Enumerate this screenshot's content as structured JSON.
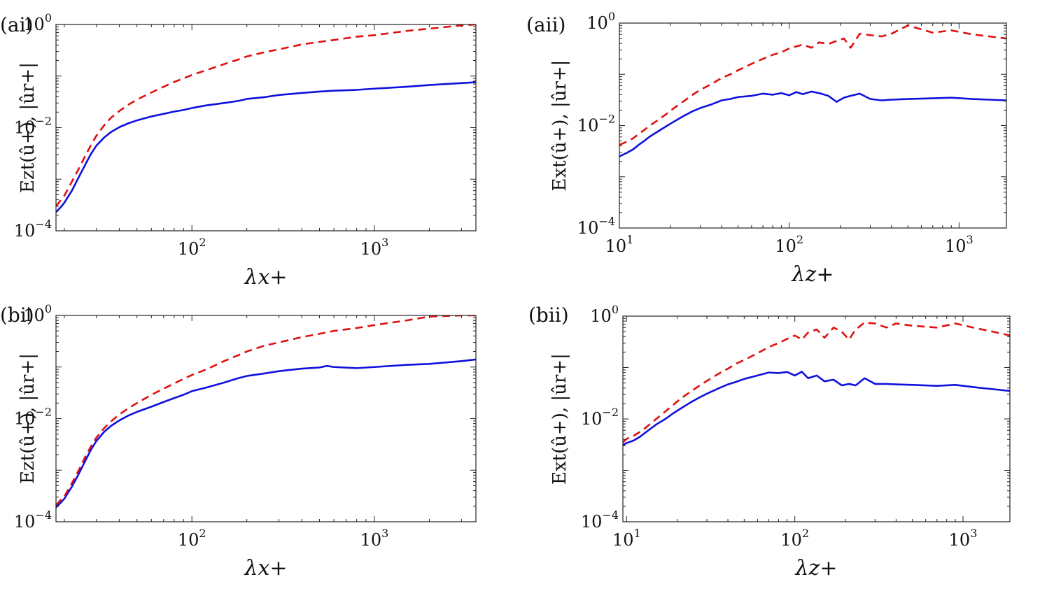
{
  "colors": {
    "solid": "#1010dd",
    "dashed": "#e01010",
    "axis": "#222222"
  },
  "chart_data": [
    {
      "id": "ai",
      "type": "line",
      "panel_label": "(ai)",
      "xlabel": "λx+",
      "ylabel": "Ezt(û+),  |ûr+|",
      "xscale": "log",
      "yscale": "log",
      "xlim": [
        18,
        3600
      ],
      "ylim": [
        0.0001,
        1
      ],
      "xticks": [
        {
          "v": 100,
          "base": "10",
          "exp": "2"
        },
        {
          "v": 1000,
          "base": "10",
          "exp": "3"
        }
      ],
      "yticks": [
        {
          "v": 0.0001,
          "base": "10",
          "exp": "−4"
        },
        {
          "v": 0.01,
          "base": "10",
          "exp": "−2"
        },
        {
          "v": 1,
          "base": "10",
          "exp": "0"
        }
      ],
      "series": [
        {
          "name": "solid",
          "style": "solid",
          "x": [
            18,
            19,
            20,
            22,
            24,
            26,
            28,
            30,
            33,
            36,
            40,
            45,
            50,
            60,
            70,
            80,
            90,
            100,
            120,
            150,
            180,
            200,
            250,
            300,
            400,
            500,
            600,
            800,
            1000,
            1500,
            2000,
            3000,
            3600
          ],
          "y": [
            0.00023,
            0.00028,
            0.00035,
            0.0006,
            0.0011,
            0.0019,
            0.0031,
            0.0045,
            0.0064,
            0.0082,
            0.0102,
            0.0122,
            0.0138,
            0.0165,
            0.0185,
            0.0205,
            0.022,
            0.024,
            0.027,
            0.03,
            0.033,
            0.036,
            0.039,
            0.043,
            0.047,
            0.05,
            0.052,
            0.054,
            0.057,
            0.062,
            0.067,
            0.073,
            0.076
          ]
        },
        {
          "name": "dashed",
          "style": "dashed",
          "x": [
            18,
            19,
            20,
            22,
            24,
            26,
            28,
            30,
            33,
            36,
            40,
            45,
            50,
            60,
            70,
            80,
            90,
            100,
            120,
            150,
            180,
            200,
            250,
            300,
            400,
            500,
            600,
            800,
            1000,
            1500,
            2000,
            3000,
            3600
          ],
          "y": [
            0.0003,
            0.00038,
            0.00048,
            0.0009,
            0.0016,
            0.0028,
            0.0046,
            0.007,
            0.011,
            0.0155,
            0.021,
            0.028,
            0.035,
            0.048,
            0.062,
            0.077,
            0.09,
            0.105,
            0.13,
            0.17,
            0.21,
            0.24,
            0.29,
            0.33,
            0.41,
            0.46,
            0.5,
            0.58,
            0.62,
            0.75,
            0.83,
            0.96,
            1.0
          ]
        }
      ]
    },
    {
      "id": "aii",
      "type": "line",
      "panel_label": "(aii)",
      "xlabel": "λz+",
      "ylabel": "Ext(û+),  |ûr+|",
      "xscale": "log",
      "yscale": "log",
      "xlim": [
        10,
        1900
      ],
      "ylim": [
        0.0001,
        1
      ],
      "xticks": [
        {
          "v": 10,
          "base": "10",
          "exp": "1"
        },
        {
          "v": 100,
          "base": "10",
          "exp": "2"
        },
        {
          "v": 1000,
          "base": "10",
          "exp": "3"
        }
      ],
      "yticks": [
        {
          "v": 0.0001,
          "base": "10",
          "exp": "−4"
        },
        {
          "v": 0.01,
          "base": "10",
          "exp": "−2"
        },
        {
          "v": 1,
          "base": "10",
          "exp": "0"
        }
      ],
      "series": [
        {
          "name": "solid",
          "style": "solid",
          "x": [
            10,
            11,
            12,
            13,
            14,
            15,
            17,
            19,
            21,
            24,
            27,
            30,
            35,
            40,
            45,
            50,
            60,
            70,
            80,
            90,
            100,
            110,
            120,
            135,
            150,
            170,
            190,
            210,
            230,
            260,
            300,
            350,
            400,
            500,
            700,
            900,
            1200,
            1500,
            1900
          ],
          "y": [
            0.0025,
            0.0029,
            0.0034,
            0.0042,
            0.005,
            0.006,
            0.0078,
            0.0098,
            0.012,
            0.0155,
            0.019,
            0.022,
            0.026,
            0.031,
            0.033,
            0.036,
            0.038,
            0.042,
            0.04,
            0.043,
            0.039,
            0.045,
            0.041,
            0.046,
            0.043,
            0.038,
            0.029,
            0.035,
            0.038,
            0.042,
            0.033,
            0.031,
            0.032,
            0.033,
            0.034,
            0.035,
            0.033,
            0.032,
            0.031
          ]
        },
        {
          "name": "dashed",
          "style": "dashed",
          "x": [
            10,
            11,
            12,
            13,
            14,
            15,
            17,
            19,
            21,
            24,
            27,
            30,
            35,
            40,
            45,
            50,
            60,
            70,
            80,
            90,
            100,
            110,
            120,
            135,
            150,
            170,
            190,
            210,
            230,
            260,
            300,
            350,
            400,
            500,
            700,
            900,
            1200,
            1500,
            1900
          ],
          "y": [
            0.0042,
            0.0048,
            0.0056,
            0.0068,
            0.0082,
            0.0098,
            0.013,
            0.017,
            0.022,
            0.03,
            0.04,
            0.05,
            0.065,
            0.085,
            0.1,
            0.12,
            0.16,
            0.2,
            0.24,
            0.27,
            0.32,
            0.35,
            0.38,
            0.33,
            0.42,
            0.39,
            0.45,
            0.5,
            0.33,
            0.62,
            0.58,
            0.55,
            0.62,
            0.9,
            0.65,
            0.72,
            0.6,
            0.55,
            0.5
          ]
        }
      ]
    },
    {
      "id": "bi",
      "type": "line",
      "panel_label": "(bi)",
      "xlabel": "λx+",
      "ylabel": "Ezt(û+),  |ûr+|",
      "xscale": "log",
      "yscale": "log",
      "xlim": [
        18,
        3600
      ],
      "ylim": [
        0.0001,
        1
      ],
      "xticks": [
        {
          "v": 100,
          "base": "10",
          "exp": "2"
        },
        {
          "v": 1000,
          "base": "10",
          "exp": "3"
        }
      ],
      "yticks": [
        {
          "v": 0.0001,
          "base": "10",
          "exp": "−4"
        },
        {
          "v": 0.01,
          "base": "10",
          "exp": "−2"
        },
        {
          "v": 1,
          "base": "10",
          "exp": "0"
        }
      ],
      "series": [
        {
          "name": "solid",
          "style": "solid",
          "x": [
            18,
            19,
            20,
            22,
            24,
            26,
            28,
            30,
            33,
            36,
            40,
            45,
            50,
            60,
            70,
            80,
            90,
            100,
            120,
            150,
            180,
            200,
            250,
            300,
            400,
            500,
            550,
            600,
            800,
            1000,
            1500,
            2000,
            3000,
            3600
          ],
          "y": [
            0.00019,
            0.00023,
            0.00028,
            0.00048,
            0.00085,
            0.0015,
            0.0025,
            0.0037,
            0.0055,
            0.0072,
            0.0092,
            0.0115,
            0.0135,
            0.017,
            0.021,
            0.025,
            0.029,
            0.034,
            0.04,
            0.05,
            0.061,
            0.067,
            0.075,
            0.083,
            0.093,
            0.098,
            0.105,
            0.1,
            0.095,
            0.1,
            0.11,
            0.115,
            0.13,
            0.14
          ]
        },
        {
          "name": "dashed",
          "style": "dashed",
          "x": [
            18,
            19,
            20,
            22,
            24,
            26,
            28,
            30,
            33,
            36,
            40,
            45,
            50,
            60,
            70,
            80,
            90,
            100,
            120,
            150,
            180,
            200,
            250,
            300,
            400,
            500,
            550,
            600,
            800,
            1000,
            1500,
            2000,
            3000,
            3600
          ],
          "y": [
            0.00021,
            0.00026,
            0.00031,
            0.00056,
            0.001,
            0.0018,
            0.0029,
            0.0043,
            0.0065,
            0.0088,
            0.012,
            0.016,
            0.02,
            0.029,
            0.038,
            0.048,
            0.059,
            0.07,
            0.09,
            0.13,
            0.17,
            0.2,
            0.26,
            0.3,
            0.38,
            0.44,
            0.47,
            0.5,
            0.57,
            0.65,
            0.8,
            0.95,
            1.0,
            1.0
          ]
        }
      ]
    },
    {
      "id": "bii",
      "type": "line",
      "panel_label": "(bii)",
      "xlabel": "λz+",
      "ylabel": "Ext(û+),  |ûr+|",
      "xscale": "log",
      "yscale": "log",
      "xlim": [
        9.5,
        1900
      ],
      "ylim": [
        0.0001,
        1
      ],
      "xticks": [
        {
          "v": 10,
          "base": "10",
          "exp": "1"
        },
        {
          "v": 100,
          "base": "10",
          "exp": "2"
        },
        {
          "v": 1000,
          "base": "10",
          "exp": "3"
        }
      ],
      "yticks": [
        {
          "v": 0.0001,
          "base": "10",
          "exp": "−4"
        },
        {
          "v": 0.01,
          "base": "10",
          "exp": "−2"
        },
        {
          "v": 1,
          "base": "10",
          "exp": "0"
        }
      ],
      "series": [
        {
          "name": "solid",
          "style": "solid",
          "x": [
            9.5,
            10,
            11,
            12,
            13,
            14,
            15,
            17,
            19,
            21,
            24,
            27,
            30,
            35,
            40,
            45,
            50,
            60,
            70,
            80,
            90,
            100,
            110,
            120,
            135,
            150,
            170,
            190,
            210,
            230,
            260,
            300,
            350,
            400,
            500,
            700,
            900,
            1200,
            1500,
            1900
          ],
          "y": [
            0.0031,
            0.0034,
            0.0038,
            0.0045,
            0.0055,
            0.0066,
            0.0078,
            0.01,
            0.013,
            0.016,
            0.021,
            0.026,
            0.031,
            0.039,
            0.047,
            0.053,
            0.06,
            0.07,
            0.08,
            0.078,
            0.082,
            0.07,
            0.083,
            0.062,
            0.07,
            0.054,
            0.058,
            0.045,
            0.048,
            0.045,
            0.062,
            0.048,
            0.048,
            0.047,
            0.046,
            0.044,
            0.046,
            0.041,
            0.038,
            0.035
          ]
        },
        {
          "name": "dashed",
          "style": "dashed",
          "x": [
            9.5,
            10,
            11,
            12,
            13,
            14,
            15,
            17,
            19,
            21,
            24,
            27,
            30,
            35,
            40,
            45,
            50,
            60,
            70,
            80,
            90,
            100,
            110,
            120,
            135,
            150,
            170,
            190,
            210,
            230,
            260,
            300,
            350,
            400,
            500,
            700,
            900,
            1200,
            1500,
            1900
          ],
          "y": [
            0.0035,
            0.0041,
            0.0047,
            0.0056,
            0.0068,
            0.0083,
            0.01,
            0.014,
            0.019,
            0.025,
            0.034,
            0.044,
            0.055,
            0.075,
            0.095,
            0.12,
            0.14,
            0.19,
            0.25,
            0.3,
            0.36,
            0.42,
            0.35,
            0.48,
            0.55,
            0.38,
            0.6,
            0.5,
            0.35,
            0.55,
            0.75,
            0.72,
            0.6,
            0.72,
            0.65,
            0.6,
            0.72,
            0.58,
            0.5,
            0.42
          ]
        }
      ]
    }
  ]
}
